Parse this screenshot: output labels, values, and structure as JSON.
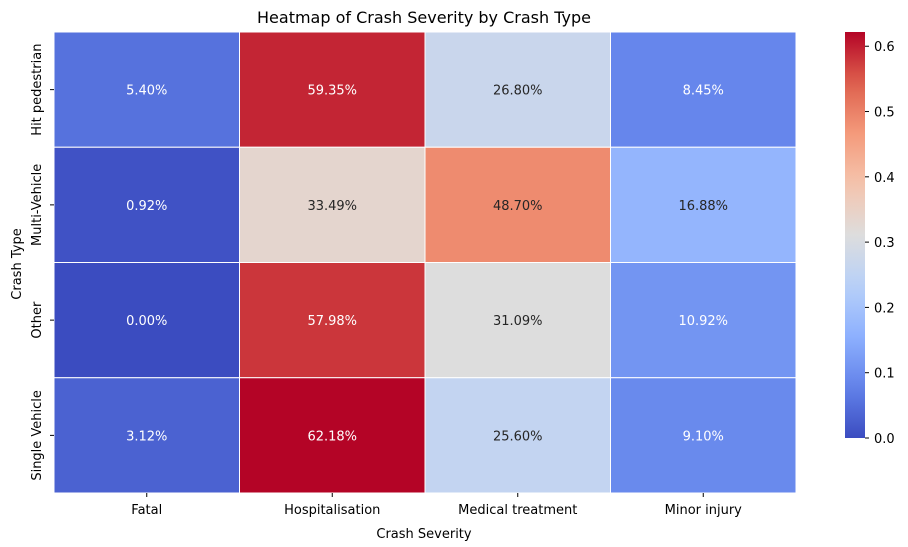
{
  "chart_data": {
    "type": "heatmap",
    "title": "Heatmap of Crash Severity by Crash Type",
    "xlabel": "Crash Severity",
    "ylabel": "Crash Type",
    "x_categories": [
      "Fatal",
      "Hospitalisation",
      "Medical treatment",
      "Minor injury"
    ],
    "y_categories": [
      "Hit pedestrian",
      "Multi-Vehicle",
      "Other",
      "Single Vehicle"
    ],
    "values": [
      [
        0.054,
        0.5935,
        0.268,
        0.0845
      ],
      [
        0.0092,
        0.3349,
        0.487,
        0.1688
      ],
      [
        0.0,
        0.5798,
        0.3109,
        0.1092
      ],
      [
        0.0312,
        0.6218,
        0.256,
        0.091
      ]
    ],
    "cell_labels": [
      [
        "5.40%",
        "59.35%",
        "26.80%",
        "8.45%"
      ],
      [
        "0.92%",
        "33.49%",
        "48.70%",
        "16.88%"
      ],
      [
        "0.00%",
        "57.98%",
        "31.09%",
        "10.92%"
      ],
      [
        "3.12%",
        "62.18%",
        "25.60%",
        "9.10%"
      ]
    ],
    "colormap": "coolwarm",
    "colorbar": {
      "vmin": 0.0,
      "vmax": 0.6218,
      "ticks": [
        0.0,
        0.1,
        0.2,
        0.3,
        0.4,
        0.5,
        0.6
      ],
      "tick_labels": [
        "0.0",
        "0.1",
        "0.2",
        "0.3",
        "0.4",
        "0.5",
        "0.6"
      ]
    },
    "grid": true,
    "legend": "colorbar-right"
  }
}
